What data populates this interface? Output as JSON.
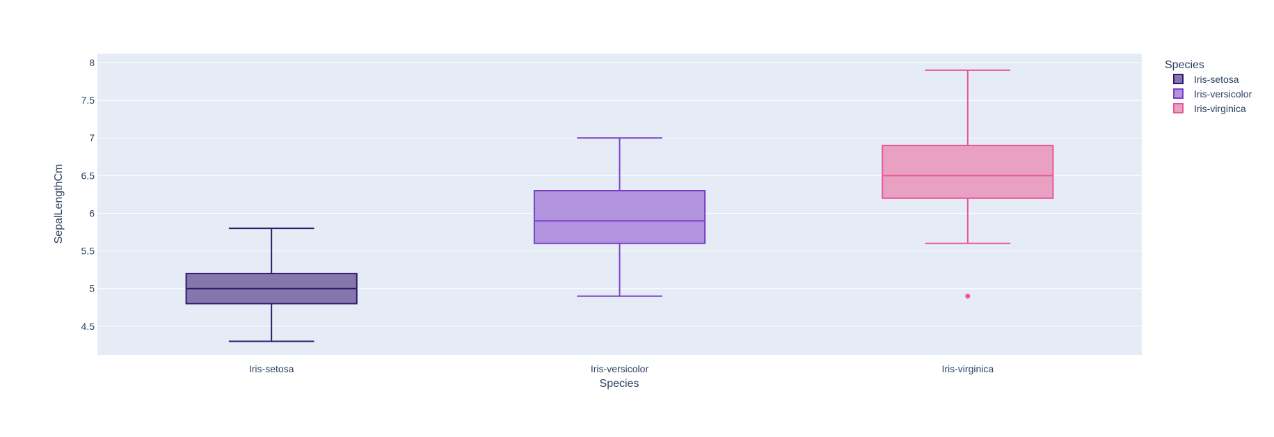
{
  "chart_data": {
    "type": "box",
    "xlabel": "Species",
    "ylabel": "SepalLengthCm",
    "categories": [
      "Iris-setosa",
      "Iris-versicolor",
      "Iris-virginica"
    ],
    "ylim": [
      4.12,
      8.12
    ],
    "yticks": [
      4.5,
      5,
      5.5,
      6,
      6.5,
      7,
      7.5,
      8
    ],
    "ytick_labels": [
      "4.5",
      "5",
      "5.5",
      "6",
      "6.5",
      "7",
      "7.5",
      "8"
    ],
    "grid": true,
    "legend": {
      "title": "Species",
      "placement": "top-right outside"
    },
    "series": [
      {
        "name": "Iris-setosa",
        "category": "Iris-setosa",
        "color": "#2e1a6b",
        "fill": "#8577ad",
        "min": 4.3,
        "q1": 4.8,
        "median": 5.0,
        "q3": 5.2,
        "max": 5.8,
        "outliers": []
      },
      {
        "name": "Iris-versicolor",
        "category": "Iris-versicolor",
        "color": "#7a3fc7",
        "fill": "#b294de",
        "min": 4.9,
        "q1": 5.6,
        "median": 5.9,
        "q3": 6.3,
        "max": 7.0,
        "outliers": []
      },
      {
        "name": "Iris-virginica",
        "category": "Iris-virginica",
        "color": "#e8559a",
        "fill": "#e9a1c2",
        "min": 5.6,
        "q1": 6.2,
        "median": 6.5,
        "q3": 6.9,
        "max": 7.9,
        "outliers": [
          4.9
        ]
      }
    ]
  }
}
